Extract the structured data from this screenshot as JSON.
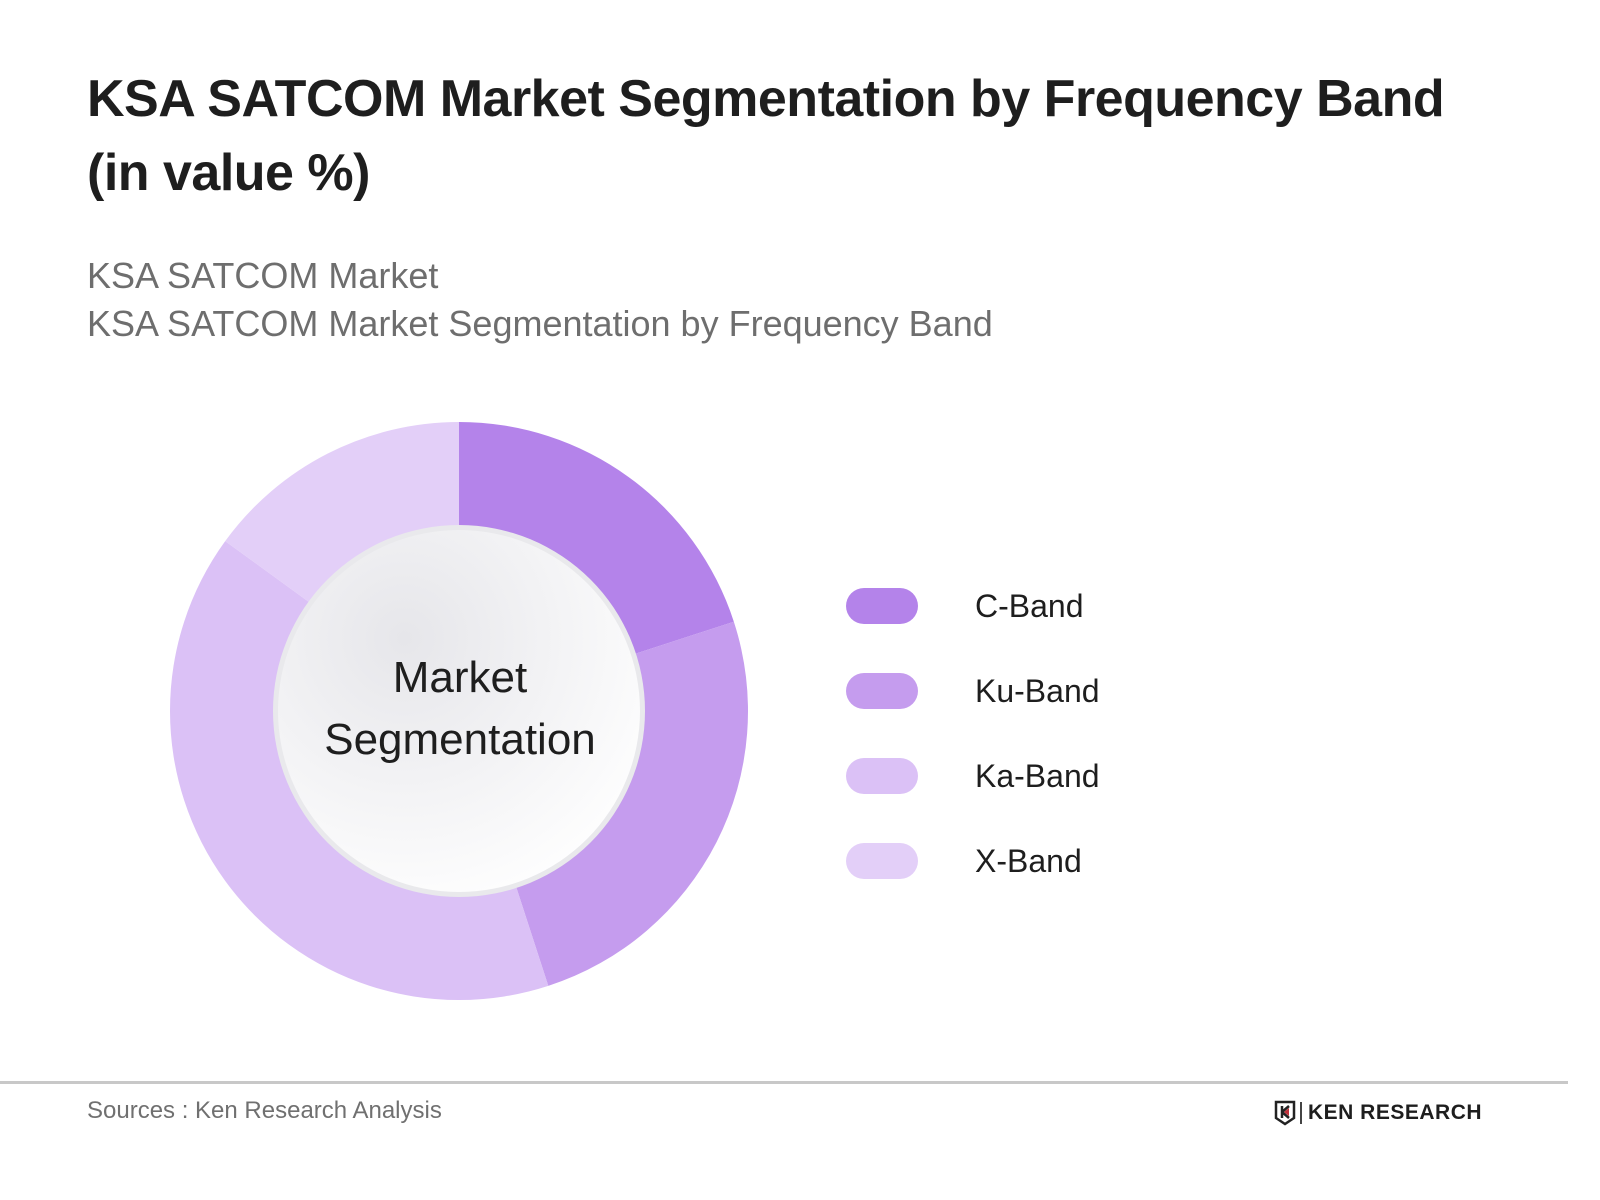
{
  "header": {
    "title": "KSA SATCOM Market Segmentation by Frequency Band (in value %)",
    "subtitle_line1": "KSA SATCOM Market",
    "subtitle_line2": "KSA SATCOM Market Segmentation by Frequency Band"
  },
  "center_label": {
    "line1": "Market",
    "line2": "Segmentation"
  },
  "legend": [
    {
      "label": "C-Band",
      "color": "#b483ea"
    },
    {
      "label": "Ku-Band",
      "color": "#c59cee"
    },
    {
      "label": "Ka-Band",
      "color": "#dbc1f6"
    },
    {
      "label": "X-Band",
      "color": "#e3cff8"
    }
  ],
  "footer": {
    "source": "Sources : Ken Research Analysis",
    "brand": "KEN RESEARCH"
  },
  "chart_data": {
    "type": "pie",
    "subtype": "donut",
    "title": "KSA SATCOM Market Segmentation by Frequency Band (in value %)",
    "subtitle": "KSA SATCOM Market / KSA SATCOM Market Segmentation by Frequency Band",
    "center_text": "Market Segmentation",
    "categories": [
      "C-Band",
      "Ku-Band",
      "Ka-Band",
      "X-Band"
    ],
    "values": [
      20,
      25,
      40,
      15
    ],
    "colors": [
      "#b483ea",
      "#c59cee",
      "#dbc1f6",
      "#e3cff8"
    ],
    "unit": "%",
    "start_angle": "12 o'clock, clockwise",
    "legend_position": "right",
    "data_labels": false
  }
}
